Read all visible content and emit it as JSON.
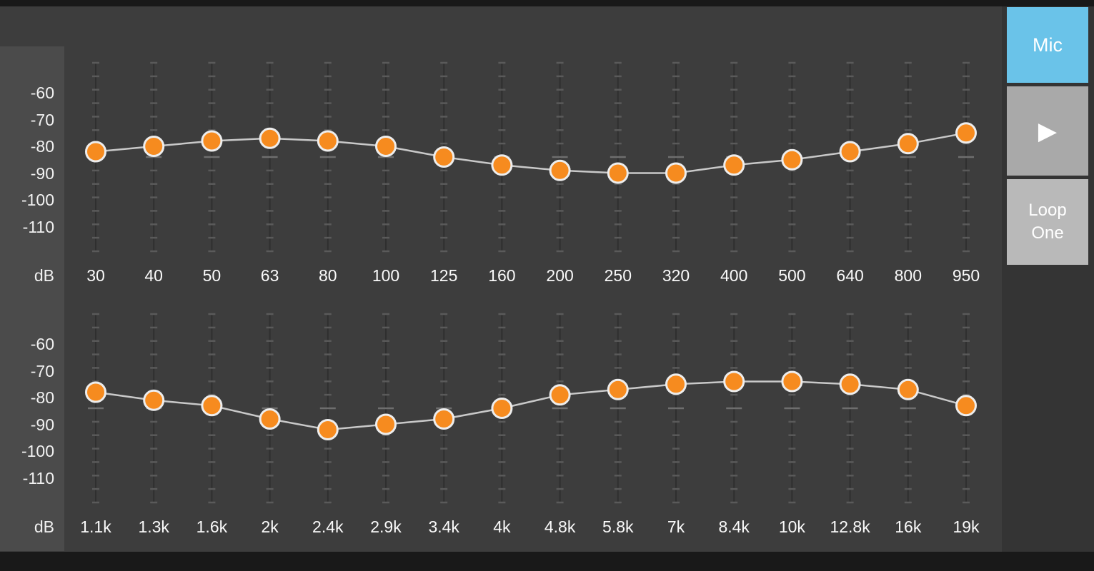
{
  "sidebar": {
    "mic_label": "Mic",
    "play_icon": "▶",
    "loop_label": "Loop One"
  },
  "colors": {
    "background": "#3d3d3d",
    "axis_rail": "#4b4b4b",
    "top_bottom_edge": "#191919",
    "sidebar_bg": "#343434",
    "mic_button_blue": "#6ac3e9",
    "play_button_gray": "#a9a9a9",
    "loop_button_gray": "#b9b9b9",
    "handle_fill_orange": "#f68b1f",
    "handle_border": "#ededed",
    "curve_line": "#c9c9c9",
    "tick_mark": "#5a5a5a",
    "label_text": "#f1f1f1"
  },
  "chart_data": [
    {
      "type": "line",
      "ylabel": "dB",
      "ytick_labels": [
        "-60",
        "-70",
        "-80",
        "-90",
        "-100",
        "-110"
      ],
      "ylim": [
        -115,
        -55
      ],
      "grid": "slider-ticks",
      "categories": [
        "30",
        "40",
        "50",
        "63",
        "80",
        "100",
        "125",
        "160",
        "200",
        "250",
        "320",
        "400",
        "500",
        "640",
        "800",
        "950"
      ],
      "values": [
        -82,
        -80,
        -78,
        -77,
        -78,
        -80,
        -84,
        -87,
        -89,
        -90,
        -90,
        -87,
        -85,
        -82,
        -79,
        -75
      ]
    },
    {
      "type": "line",
      "ylabel": "dB",
      "ytick_labels": [
        "-60",
        "-70",
        "-80",
        "-90",
        "-100",
        "-110"
      ],
      "ylim": [
        -115,
        -55
      ],
      "grid": "slider-ticks",
      "categories": [
        "1.1k",
        "1.3k",
        "1.6k",
        "2k",
        "2.4k",
        "2.9k",
        "3.4k",
        "4k",
        "4.8k",
        "5.8k",
        "7k",
        "8.4k",
        "10k",
        "12.8k",
        "16k",
        "19k"
      ],
      "values": [
        -78,
        -81,
        -83,
        -88,
        -92,
        -90,
        -88,
        -84,
        -79,
        -77,
        -75,
        -74,
        -74,
        -75,
        -77,
        -83
      ]
    }
  ]
}
